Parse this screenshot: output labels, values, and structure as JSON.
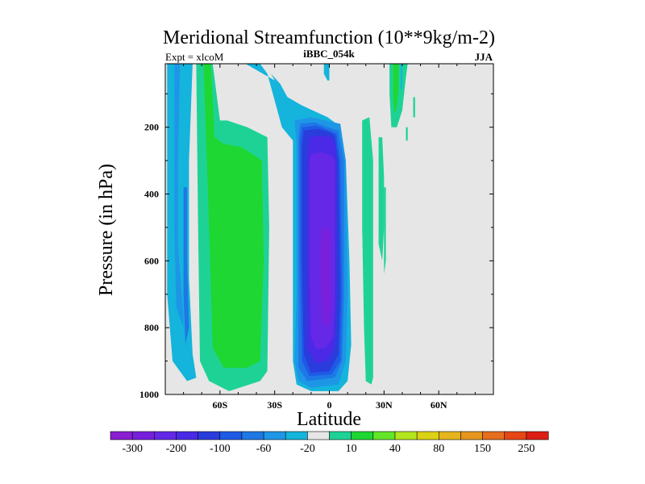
{
  "chart_data": {
    "type": "contour",
    "title": "Meridional Streamfunction (10**9kg/m-2)",
    "left_label": "Expt = xlcoM",
    "center_label": "iBBC_054k",
    "right_label": "JJA",
    "xlabel": "Latitude",
    "ylabel": "Pressure (in hPa)",
    "xlim": [
      -90,
      90
    ],
    "ylim": [
      1000,
      10
    ],
    "x_ticks": [
      {
        "value": -60,
        "label": "60S"
      },
      {
        "value": -30,
        "label": "30S"
      },
      {
        "value": 0,
        "label": "0"
      },
      {
        "value": 30,
        "label": "30N"
      },
      {
        "value": 60,
        "label": "60N"
      }
    ],
    "y_ticks": [
      {
        "value": 200,
        "label": "200"
      },
      {
        "value": 400,
        "label": "400"
      },
      {
        "value": 600,
        "label": "600"
      },
      {
        "value": 800,
        "label": "800"
      },
      {
        "value": 1000,
        "label": "1000"
      }
    ],
    "background_color": "#e6e6e6",
    "colorbar": {
      "colors": [
        "#8a1ed2",
        "#7820dc",
        "#6428e6",
        "#4a2ae6",
        "#2a3cdc",
        "#1e5ae6",
        "#1e78e6",
        "#1e96e6",
        "#14b4dc",
        "#e6e6e6",
        "#1ed296",
        "#1ed732",
        "#64e628",
        "#b4e61e",
        "#dcd214",
        "#e6b41e",
        "#e6961e",
        "#e66e1e",
        "#e64614",
        "#dc1e14"
      ],
      "labels": [
        "-300",
        "-200",
        "-100",
        "-60",
        "-20",
        "10",
        "40",
        "80",
        "150",
        "250"
      ],
      "label_boundary_index": [
        1,
        3,
        5,
        7,
        9,
        11,
        13,
        15,
        17,
        19
      ]
    },
    "regions": [
      {
        "name": "sh-outer-cell-cyan",
        "color": "#14b4dc",
        "points": [
          [
            -89,
            10
          ],
          [
            -75,
            10
          ],
          [
            -77,
            300
          ],
          [
            -77,
            650
          ],
          [
            -75,
            880
          ],
          [
            -73,
            950
          ],
          [
            -78,
            960
          ],
          [
            -86,
            900
          ],
          [
            -89,
            700
          ]
        ]
      },
      {
        "name": "sh-outer-cell-blue",
        "color": "#1e96e6",
        "points": [
          [
            -85,
            10
          ],
          [
            -82,
            10
          ],
          [
            -83,
            300
          ],
          [
            -83,
            560
          ],
          [
            -80,
            760
          ],
          [
            -80,
            800
          ],
          [
            -84,
            740
          ],
          [
            -85,
            500
          ]
        ]
      },
      {
        "name": "sh-outer-cell-darkblue",
        "color": "#1e78e6",
        "points": [
          [
            -80,
            380
          ],
          [
            -78,
            380
          ],
          [
            -78,
            600
          ],
          [
            -77,
            800
          ],
          [
            -79,
            850
          ],
          [
            -80,
            700
          ]
        ]
      },
      {
        "name": "sh-midlat-cell-lightgreen-ring",
        "color": "#1ed296",
        "points": [
          [
            -73,
            10
          ],
          [
            -64,
            10
          ],
          [
            -60,
            180
          ],
          [
            -56,
            180
          ],
          [
            -45,
            200
          ],
          [
            -34,
            230
          ],
          [
            -33,
            500
          ],
          [
            -34,
            930
          ],
          [
            -38,
            960
          ],
          [
            -55,
            990
          ],
          [
            -66,
            960
          ],
          [
            -71,
            900
          ],
          [
            -72,
            500
          ]
        ]
      },
      {
        "name": "sh-midlat-cell-green",
        "color": "#1ed732",
        "points": [
          [
            -69,
            10
          ],
          [
            -65,
            10
          ],
          [
            -63,
            230
          ],
          [
            -58,
            250
          ],
          [
            -48,
            260
          ],
          [
            -37,
            300
          ],
          [
            -36,
            600
          ],
          [
            -38,
            900
          ],
          [
            -45,
            920
          ],
          [
            -58,
            920
          ],
          [
            -64,
            860
          ],
          [
            -66,
            500
          ]
        ]
      },
      {
        "name": "hadley-cyan-envelope",
        "color": "#14b4dc",
        "points": [
          [
            -46,
            10
          ],
          [
            -38,
            10
          ],
          [
            -34,
            40
          ],
          [
            -30,
            120
          ],
          [
            -26,
            200
          ],
          [
            -20,
            240
          ],
          [
            -20,
            500
          ],
          [
            -20,
            900
          ],
          [
            -18,
            970
          ],
          [
            -10,
            990
          ],
          [
            5,
            990
          ],
          [
            10,
            960
          ],
          [
            12,
            850
          ],
          [
            11,
            600
          ],
          [
            9,
            300
          ],
          [
            4,
            190
          ],
          [
            -1,
            170
          ],
          [
            -5,
            160
          ],
          [
            -15,
            135
          ],
          [
            -23,
            110
          ],
          [
            -27,
            70
          ],
          [
            -32,
            40
          ],
          [
            -30,
            60
          ]
        ]
      },
      {
        "name": "hadley-blue",
        "color": "#1e96e6",
        "points": [
          [
            -19,
            180
          ],
          [
            -10,
            170
          ],
          [
            -2,
            180
          ],
          [
            6,
            190
          ],
          [
            9,
            300
          ],
          [
            10,
            700
          ],
          [
            9,
            900
          ],
          [
            5,
            970
          ],
          [
            -10,
            980
          ],
          [
            -17,
            960
          ],
          [
            -19,
            900
          ],
          [
            -18,
            700
          ],
          [
            -18,
            250
          ]
        ]
      },
      {
        "name": "hadley-mid-blue",
        "color": "#1e78e6",
        "points": [
          [
            -16,
            190
          ],
          [
            -8,
            185
          ],
          [
            -1,
            200
          ],
          [
            5,
            210
          ],
          [
            8,
            300
          ],
          [
            8,
            700
          ],
          [
            7,
            900
          ],
          [
            3,
            950
          ],
          [
            -12,
            960
          ],
          [
            -17,
            920
          ],
          [
            -17,
            600
          ],
          [
            -17,
            230
          ]
        ]
      },
      {
        "name": "hadley-blue-2",
        "color": "#1e5ae6",
        "points": [
          [
            -15,
            200
          ],
          [
            -7,
            195
          ],
          [
            0,
            210
          ],
          [
            4,
            220
          ],
          [
            6,
            300
          ],
          [
            7,
            700
          ],
          [
            6,
            900
          ],
          [
            1,
            940
          ],
          [
            -11,
            945
          ],
          [
            -15,
            900
          ],
          [
            -16,
            600
          ],
          [
            -16,
            240
          ]
        ]
      },
      {
        "name": "hadley-royal-blue",
        "color": "#2a3cdc",
        "points": [
          [
            -14,
            210
          ],
          [
            -6,
            205
          ],
          [
            0,
            215
          ],
          [
            3,
            225
          ],
          [
            5,
            300
          ],
          [
            6,
            700
          ],
          [
            5,
            880
          ],
          [
            0,
            930
          ],
          [
            -10,
            935
          ],
          [
            -14,
            880
          ],
          [
            -15,
            600
          ],
          [
            -15,
            260
          ]
        ]
      },
      {
        "name": "hadley-dark-blue",
        "color": "#4a2ae6",
        "points": [
          [
            -11,
            230
          ],
          [
            -5,
            225
          ],
          [
            1,
            230
          ],
          [
            3,
            245
          ],
          [
            4,
            320
          ],
          [
            4,
            700
          ],
          [
            3,
            860
          ],
          [
            -1,
            900
          ],
          [
            -8,
            905
          ],
          [
            -12,
            860
          ],
          [
            -12,
            600
          ],
          [
            -12,
            280
          ]
        ]
      },
      {
        "name": "hadley-indigo",
        "color": "#6428e6",
        "points": [
          [
            -10,
            280
          ],
          [
            -4,
            275
          ],
          [
            1,
            285
          ],
          [
            3,
            300
          ],
          [
            3,
            380
          ],
          [
            3,
            750
          ],
          [
            2,
            830
          ],
          [
            -2,
            860
          ],
          [
            -7,
            865
          ],
          [
            -10,
            830
          ],
          [
            -11,
            600
          ],
          [
            -11,
            320
          ]
        ]
      },
      {
        "name": "hadley-core-violet",
        "color": "#7820dc",
        "points": [
          [
            -4,
            500
          ],
          [
            -1,
            505
          ],
          [
            1,
            520
          ],
          [
            1,
            600
          ],
          [
            1,
            720
          ],
          [
            0,
            780
          ],
          [
            -2,
            800
          ],
          [
            -4,
            780
          ],
          [
            -5,
            650
          ],
          [
            -5,
            550
          ]
        ]
      },
      {
        "name": "nh-tropical-cyan-streak",
        "color": "#14b4dc",
        "points": [
          [
            -3,
            10
          ],
          [
            0,
            10
          ],
          [
            0,
            60
          ],
          [
            -1,
            60
          ],
          [
            -3,
            40
          ]
        ]
      },
      {
        "name": "nh-tropical-green-left",
        "color": "#1ed296",
        "points": [
          [
            18,
            180
          ],
          [
            22,
            170
          ],
          [
            24,
            300
          ],
          [
            24,
            600
          ],
          [
            24,
            800
          ],
          [
            24,
            950
          ],
          [
            23,
            970
          ],
          [
            20,
            960
          ],
          [
            19,
            800
          ],
          [
            18,
            500
          ]
        ]
      },
      {
        "name": "nh-tropical-green-right",
        "color": "#1ed296",
        "points": [
          [
            27,
            230
          ],
          [
            29,
            230
          ],
          [
            30,
            350
          ],
          [
            30,
            500
          ],
          [
            29,
            600
          ],
          [
            27,
            550
          ],
          [
            27,
            400
          ]
        ]
      },
      {
        "name": "nh-upper-green",
        "color": "#1ed296",
        "points": [
          [
            33,
            10
          ],
          [
            43,
            10
          ],
          [
            42,
            50
          ],
          [
            40,
            150
          ],
          [
            37,
            200
          ],
          [
            34,
            200
          ],
          [
            33,
            100
          ]
        ]
      },
      {
        "name": "nh-upper-green-core",
        "color": "#1ed732",
        "points": [
          [
            35,
            10
          ],
          [
            38,
            10
          ],
          [
            38,
            80
          ],
          [
            37,
            140
          ],
          [
            36,
            160
          ],
          [
            35,
            120
          ]
        ]
      },
      {
        "name": "nh-upper-cyan-sliver",
        "color": "#14b4dc",
        "points": [
          [
            39,
            10
          ],
          [
            40,
            10
          ],
          [
            40,
            80
          ],
          [
            39,
            90
          ]
        ]
      },
      {
        "name": "nh-thin-streak",
        "color": "#1ed296",
        "points": [
          [
            30,
            380
          ],
          [
            31,
            380
          ],
          [
            31,
            600
          ],
          [
            30,
            640
          ]
        ]
      },
      {
        "name": "nh-small-blob",
        "color": "#1ed296",
        "points": [
          [
            46,
            110
          ],
          [
            47,
            110
          ],
          [
            47,
            170
          ],
          [
            46,
            170
          ]
        ]
      },
      {
        "name": "nh-small-blob-2",
        "color": "#1ed296",
        "points": [
          [
            42,
            200
          ],
          [
            43,
            200
          ],
          [
            43,
            240
          ],
          [
            42,
            240
          ]
        ]
      }
    ]
  }
}
